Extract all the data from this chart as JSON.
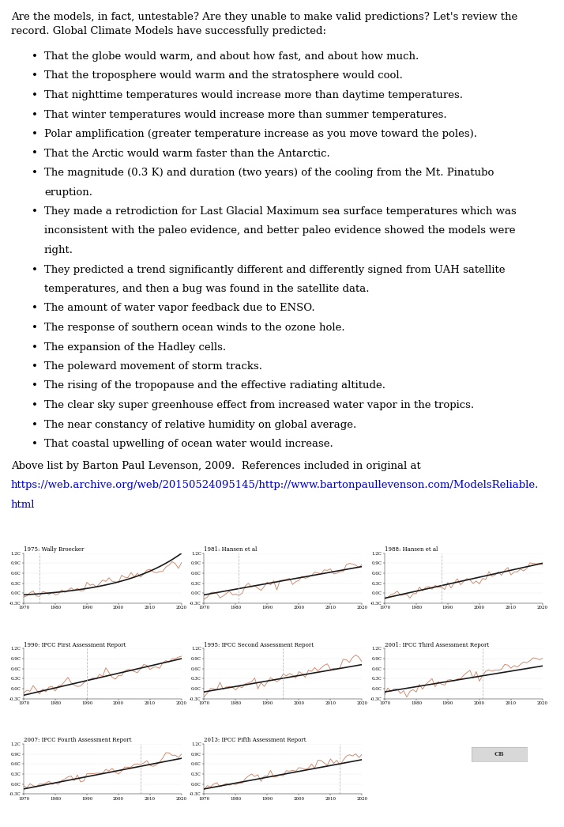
{
  "intro_text_line1": "Are the models, in fact, untestable? Are they unable to make valid predictions? Let's review the",
  "intro_text_line2": "record. Global Climate Models have successfully predicted:",
  "bullet_points": [
    "That the globe would warm, and about how fast, and about how much.",
    "That the troposphere would warm and the stratosphere would cool.",
    "That nighttime temperatures would increase more than daytime temperatures.",
    "That winter temperatures would increase more than summer temperatures.",
    "Polar amplification (greater temperature increase as you move toward the poles).",
    "That the Arctic would warm faster than the Antarctic.",
    "The magnitude (0.3 K) and duration (two years) of the cooling from the Mt. Pinatubo",
    "eruption.",
    "They made a retrodiction for Last Glacial Maximum sea surface temperatures which was",
    "inconsistent with the paleo evidence, and better paleo evidence showed the models were",
    "right.",
    "They predicted a trend significantly different and differently signed from UAH satellite",
    "temperatures, and then a bug was found in the satellite data.",
    "The amount of water vapor feedback due to ENSO.",
    "The response of southern ocean winds to the ozone hole.",
    "The expansion of the Hadley cells.",
    "The poleward movement of storm tracks.",
    "The rising of the tropopause and the effective radiating altitude.",
    "The clear sky super greenhouse effect from increased water vapor in the tropics.",
    "The near constancy of relative humidity on global average.",
    "That coastal upwelling of ocean water would increase."
  ],
  "bullet_structure": [
    {
      "text": "That the globe would warm, and about how fast, and about how much.",
      "continuation": false
    },
    {
      "text": "That the troposphere would warm and the stratosphere would cool.",
      "continuation": false
    },
    {
      "text": "That nighttime temperatures would increase more than daytime temperatures.",
      "continuation": false
    },
    {
      "text": "That winter temperatures would increase more than summer temperatures.",
      "continuation": false
    },
    {
      "text": "Polar amplification (greater temperature increase as you move toward the poles).",
      "continuation": false
    },
    {
      "text": "That the Arctic would warm faster than the Antarctic.",
      "continuation": false
    },
    {
      "text": "The magnitude (0.3 K) and duration (two years) of the cooling from the Mt. Pinatubo",
      "continuation": false
    },
    {
      "text": "eruption.",
      "continuation": true
    },
    {
      "text": "They made a retrodiction for Last Glacial Maximum sea surface temperatures which was",
      "continuation": false
    },
    {
      "text": "inconsistent with the paleo evidence, and better paleo evidence showed the models were",
      "continuation": true
    },
    {
      "text": "right.",
      "continuation": true
    },
    {
      "text": "They predicted a trend significantly different and differently signed from UAH satellite",
      "continuation": false
    },
    {
      "text": "temperatures, and then a bug was found in the satellite data.",
      "continuation": true
    },
    {
      "text": "The amount of water vapor feedback due to ENSO.",
      "continuation": false
    },
    {
      "text": "The response of southern ocean winds to the ozone hole.",
      "continuation": false
    },
    {
      "text": "The expansion of the Hadley cells.",
      "continuation": false
    },
    {
      "text": "The poleward movement of storm tracks.",
      "continuation": false
    },
    {
      "text": "The rising of the tropopause and the effective radiating altitude.",
      "continuation": false
    },
    {
      "text": "The clear sky super greenhouse effect from increased water vapor in the tropics.",
      "continuation": false
    },
    {
      "text": "The near constancy of relative humidity on global average.",
      "continuation": false
    },
    {
      "text": "That coastal upwelling of ocean water would increase.",
      "continuation": false
    }
  ],
  "attribution_text": "Above list by Barton Paul Levenson, 2009.  References included in original at",
  "link_line1": "https://web.archive.org/web/20150524095145/http://www.bartonpaullevenson.com/ModelsReliable.",
  "link_line2": "html",
  "charts": [
    {
      "title": "1975: Wally Broecker",
      "vline_year": 1975,
      "xmin": 1970,
      "xmax": 2020,
      "ymin": -0.3,
      "ymax": 1.2,
      "model_type": "exponential"
    },
    {
      "title": "1981: Hansen et al",
      "vline_year": 1981,
      "xmin": 1970,
      "xmax": 2020,
      "ymin": -0.3,
      "ymax": 1.2,
      "model_type": "linear"
    },
    {
      "title": "1988: Hansen et al",
      "vline_year": 1988,
      "xmin": 1970,
      "xmax": 2020,
      "ymin": -0.3,
      "ymax": 1.2,
      "model_type": "linear_1988"
    },
    {
      "title": "1990: IPCC First Assessment Report",
      "vline_year": 1990,
      "xmin": 1970,
      "xmax": 2020,
      "ymin": -0.3,
      "ymax": 1.2,
      "model_type": "linear_steep"
    },
    {
      "title": "1995: IPCC Second Assessment Report",
      "vline_year": 1995,
      "xmin": 1970,
      "xmax": 2020,
      "ymin": -0.3,
      "ymax": 1.2,
      "model_type": "linear_medium"
    },
    {
      "title": "2001: IPCC Third Assessment Report",
      "vline_year": 2001,
      "xmin": 1970,
      "xmax": 2020,
      "ymin": -0.3,
      "ymax": 1.2,
      "model_type": "linear_gentle"
    },
    {
      "title": "2007: IPCC Fourth Assessment Report",
      "vline_year": 2007,
      "xmin": 1970,
      "xmax": 2020,
      "ymin": -0.3,
      "ymax": 1.2,
      "model_type": "linear_medium2"
    },
    {
      "title": "2013: IPCC Fifth Assessment Report",
      "vline_year": 2013,
      "xmin": 1970,
      "xmax": 2020,
      "ymin": -0.3,
      "ymax": 1.2,
      "model_type": "linear_medium3"
    }
  ],
  "obs_color": "#c8785a",
  "model_color": "#1a1a1a",
  "vline_color": "#bbbbbb",
  "bg_color": "#ffffff",
  "text_color": "#000000",
  "link_color": "#0000cc",
  "font_family": "DejaVu Serif",
  "text_fontsize": 9.5,
  "chart_title_fontsize": 5.0,
  "tick_fontsize": 4.0
}
